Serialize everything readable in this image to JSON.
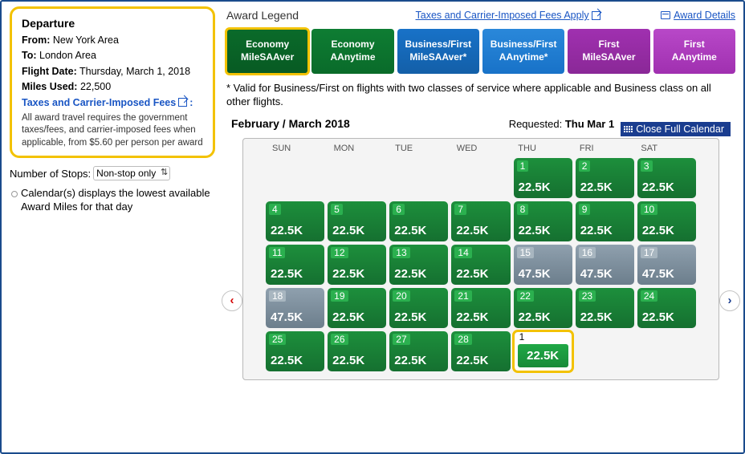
{
  "departure": {
    "heading": "Departure",
    "from_label": "From:",
    "from_value": "New York Area",
    "to_label": "To:",
    "to_value": "London Area",
    "date_label": "Flight Date:",
    "date_value": "Thursday, March 1, 2018",
    "miles_label": "Miles Used:",
    "miles_value": "22,500",
    "taxes_link": "Taxes and Carrier-Imposed Fees",
    "fine_print": "All award travel requires the government taxes/fees, and carrier-imposed fees when applicable, from $5.60 per person per award"
  },
  "stops": {
    "label": "Number of Stops:",
    "selected": "Non-stop only"
  },
  "calendar_note": "Calendar(s) displays the lowest available Award Miles for that day",
  "legend": {
    "title": "Award Legend",
    "taxes_link": "Taxes and Carrier-Imposed Fees Apply",
    "details_link": "Award Details",
    "tabs": [
      {
        "line1": "Economy",
        "line2": "MileSAAver",
        "color": "c-green",
        "selected": true
      },
      {
        "line1": "Economy",
        "line2": "AAnytime",
        "color": "c-green2"
      },
      {
        "line1": "Business/First",
        "line2": "MileSAAver*",
        "color": "c-blue"
      },
      {
        "line1": "Business/First",
        "line2": "AAnytime*",
        "color": "c-blue2"
      },
      {
        "line1": "First",
        "line2": "MileSAAver",
        "color": "c-purple"
      },
      {
        "line1": "First",
        "line2": "AAnytime",
        "color": "c-purple2"
      }
    ],
    "colors": {
      "green": "#0a6b2a",
      "blue": "#1872c8",
      "purple": "#a030b0",
      "yellow": "#f3c200"
    }
  },
  "footnote": "* Valid for Business/First on flights with two classes of service where applicable and Business class on all other flights.",
  "calendar": {
    "month_label": "February / March 2018",
    "requested_label": "Requested:",
    "requested_value": "Thu Mar 1",
    "close_label": "Close Full Calendar",
    "dow": [
      "SUN",
      "MON",
      "TUE",
      "WED",
      "THU",
      "FRI",
      "SAT"
    ],
    "low_color": "#1d8f3c",
    "high_color": "#8fa0ae",
    "days": [
      null,
      null,
      null,
      null,
      {
        "n": "1",
        "p": "22.5K",
        "t": "low"
      },
      {
        "n": "2",
        "p": "22.5K",
        "t": "low"
      },
      {
        "n": "3",
        "p": "22.5K",
        "t": "low"
      },
      {
        "n": "4",
        "p": "22.5K",
        "t": "low"
      },
      {
        "n": "5",
        "p": "22.5K",
        "t": "low"
      },
      {
        "n": "6",
        "p": "22.5K",
        "t": "low"
      },
      {
        "n": "7",
        "p": "22.5K",
        "t": "low"
      },
      {
        "n": "8",
        "p": "22.5K",
        "t": "low"
      },
      {
        "n": "9",
        "p": "22.5K",
        "t": "low"
      },
      {
        "n": "10",
        "p": "22.5K",
        "t": "low"
      },
      {
        "n": "11",
        "p": "22.5K",
        "t": "low"
      },
      {
        "n": "12",
        "p": "22.5K",
        "t": "low"
      },
      {
        "n": "13",
        "p": "22.5K",
        "t": "low"
      },
      {
        "n": "14",
        "p": "22.5K",
        "t": "low"
      },
      {
        "n": "15",
        "p": "47.5K",
        "t": "high"
      },
      {
        "n": "16",
        "p": "47.5K",
        "t": "high"
      },
      {
        "n": "17",
        "p": "47.5K",
        "t": "high"
      },
      {
        "n": "18",
        "p": "47.5K",
        "t": "high"
      },
      {
        "n": "19",
        "p": "22.5K",
        "t": "low"
      },
      {
        "n": "20",
        "p": "22.5K",
        "t": "low"
      },
      {
        "n": "21",
        "p": "22.5K",
        "t": "low"
      },
      {
        "n": "22",
        "p": "22.5K",
        "t": "low"
      },
      {
        "n": "23",
        "p": "22.5K",
        "t": "low"
      },
      {
        "n": "24",
        "p": "22.5K",
        "t": "low"
      },
      {
        "n": "25",
        "p": "22.5K",
        "t": "low"
      },
      {
        "n": "26",
        "p": "22.5K",
        "t": "low"
      },
      {
        "n": "27",
        "p": "22.5K",
        "t": "low"
      },
      {
        "n": "28",
        "p": "22.5K",
        "t": "low"
      },
      {
        "n": "1",
        "p": "22.5K",
        "t": "req"
      }
    ]
  }
}
